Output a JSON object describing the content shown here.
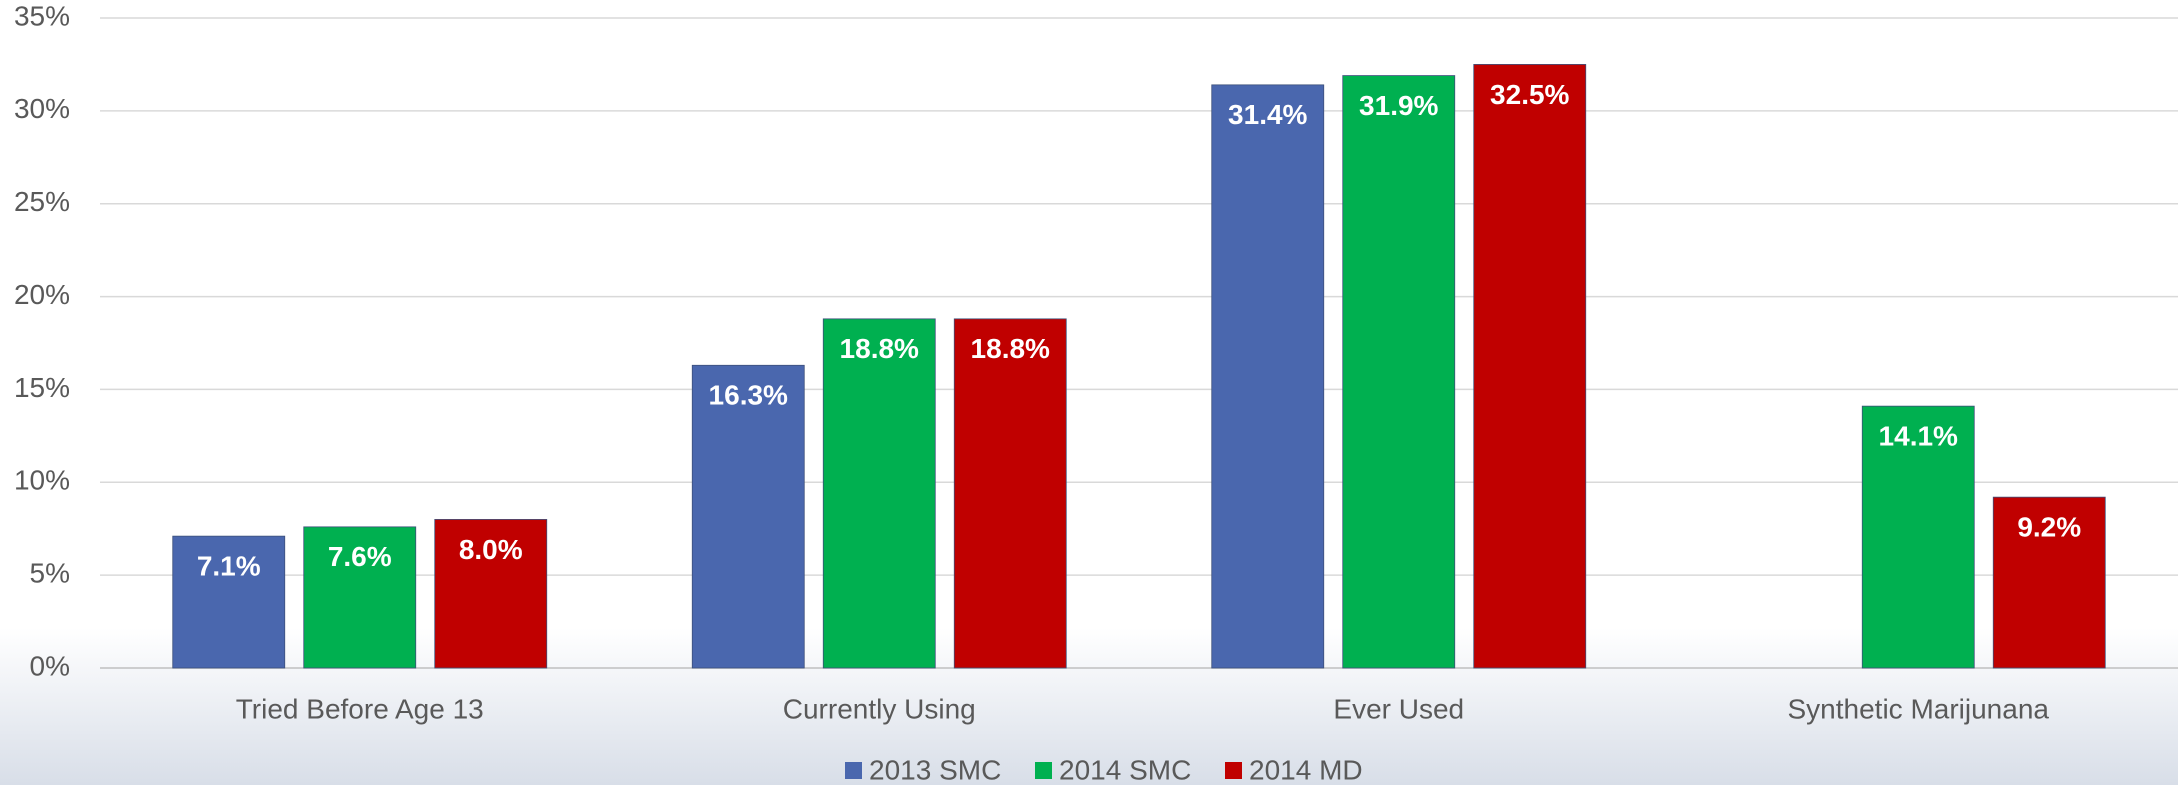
{
  "chart_data": {
    "type": "bar",
    "categories": [
      "Tried Before Age 13",
      "Currently Using",
      "Ever Used",
      "Synthetic Marijunana"
    ],
    "series": [
      {
        "name": "2013 SMC",
        "color": "#4a67ae",
        "values": [
          7.1,
          16.3,
          31.4,
          null
        ],
        "value_labels": [
          "7.1%",
          "16.3%",
          "31.4%",
          null
        ]
      },
      {
        "name": "2014 SMC",
        "color": "#00b050",
        "values": [
          7.6,
          18.8,
          31.9,
          14.1
        ],
        "value_labels": [
          "7.6%",
          "18.8%",
          "31.9%",
          "14.1%"
        ]
      },
      {
        "name": "2014 MD",
        "color": "#c00000",
        "values": [
          8.0,
          18.8,
          32.5,
          9.2
        ],
        "value_labels": [
          "8.0%",
          "18.8%",
          "32.5%",
          "9.2%"
        ]
      }
    ],
    "ylim": [
      0,
      35
    ],
    "yticks": [
      {
        "value": 0,
        "label": "0%"
      },
      {
        "value": 5,
        "label": "5%"
      },
      {
        "value": 10,
        "label": "10%"
      },
      {
        "value": 15,
        "label": "15%"
      },
      {
        "value": 20,
        "label": "20%"
      },
      {
        "value": 25,
        "label": "25%"
      },
      {
        "value": 30,
        "label": "30%"
      },
      {
        "value": 35,
        "label": "35%"
      }
    ],
    "grid": true,
    "legend": "bottom"
  }
}
